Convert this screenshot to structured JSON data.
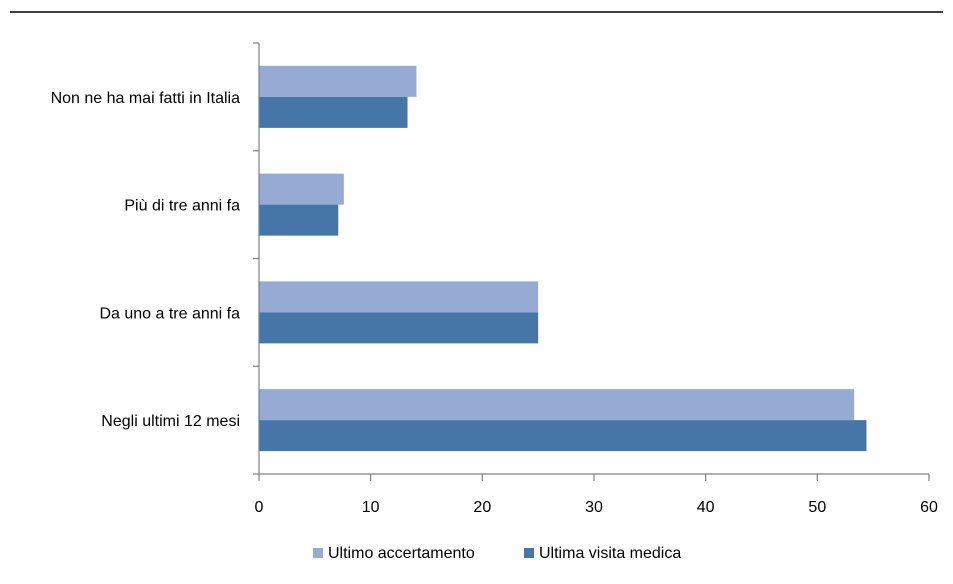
{
  "chart_data": {
    "type": "bar",
    "orientation": "horizontal",
    "title": "",
    "xlabel": "",
    "ylabel": "",
    "categories": [
      "Non ne ha mai fatti  in Italia",
      "Più di tre anni fa",
      "Da uno  a tre anni fa",
      "Negli ultimi 12 mesi"
    ],
    "series": [
      {
        "name": "Ultimo accertamento",
        "color": "#95abd3",
        "values": [
          14.1,
          7.6,
          25.0,
          53.3
        ]
      },
      {
        "name": "Ultima visita medica",
        "color": "#4676a8",
        "values": [
          13.3,
          7.1,
          25.0,
          54.4
        ]
      }
    ],
    "xlim": [
      0,
      60
    ],
    "xticks": [
      0,
      10,
      20,
      30,
      40,
      50,
      60
    ],
    "grid": false,
    "legend_position": "bottom-center"
  }
}
